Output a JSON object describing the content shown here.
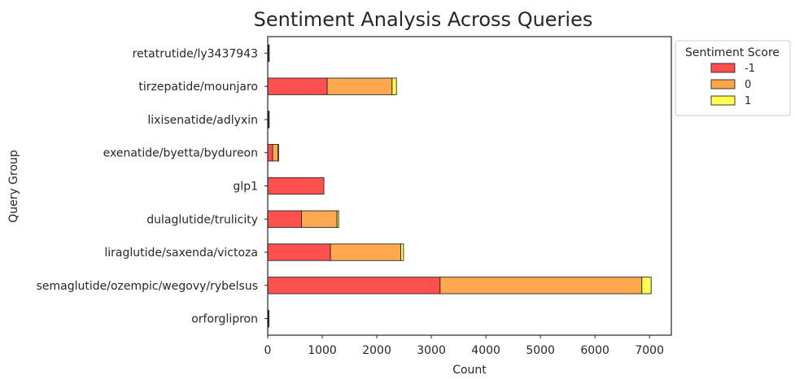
{
  "chart_data": {
    "type": "bar",
    "orientation": "horizontal",
    "stacked": true,
    "title": "Sentiment Analysis Across Queries",
    "xlabel": "Count",
    "ylabel": "Query Group",
    "xlim": [
      0,
      7400
    ],
    "xticks": [
      0,
      1000,
      2000,
      3000,
      4000,
      5000,
      6000,
      7000
    ],
    "xtick_labels": [
      "0",
      "1000",
      "2000",
      "3000",
      "4000",
      "5000",
      "6000",
      "7000"
    ],
    "grid": false,
    "legend": {
      "title": "Sentiment Score",
      "placement": "outside-top-right"
    },
    "categories": [
      "retatrutide/ly3437943",
      "tirzepatide/mounjaro",
      "lixisenatide/adlyxin",
      "exenatide/byetta/bydureon",
      "glp1",
      "dulaglutide/trulicity",
      "liraglutide/saxenda/victoza",
      "semaglutide/ozempic/wegovy/rybelsus",
      "orforglipron"
    ],
    "series": [
      {
        "name": "-1",
        "color": "#ff4d4d",
        "values": [
          10,
          1090,
          10,
          90,
          1030,
          620,
          1150,
          3160,
          8
        ]
      },
      {
        "name": "0",
        "color": "#ffa64d",
        "values": [
          10,
          1190,
          10,
          100,
          0,
          650,
          1290,
          3700,
          8
        ]
      },
      {
        "name": "1",
        "color": "#ffff4d",
        "values": [
          2,
          80,
          2,
          10,
          0,
          30,
          50,
          170,
          2
        ]
      }
    ]
  }
}
